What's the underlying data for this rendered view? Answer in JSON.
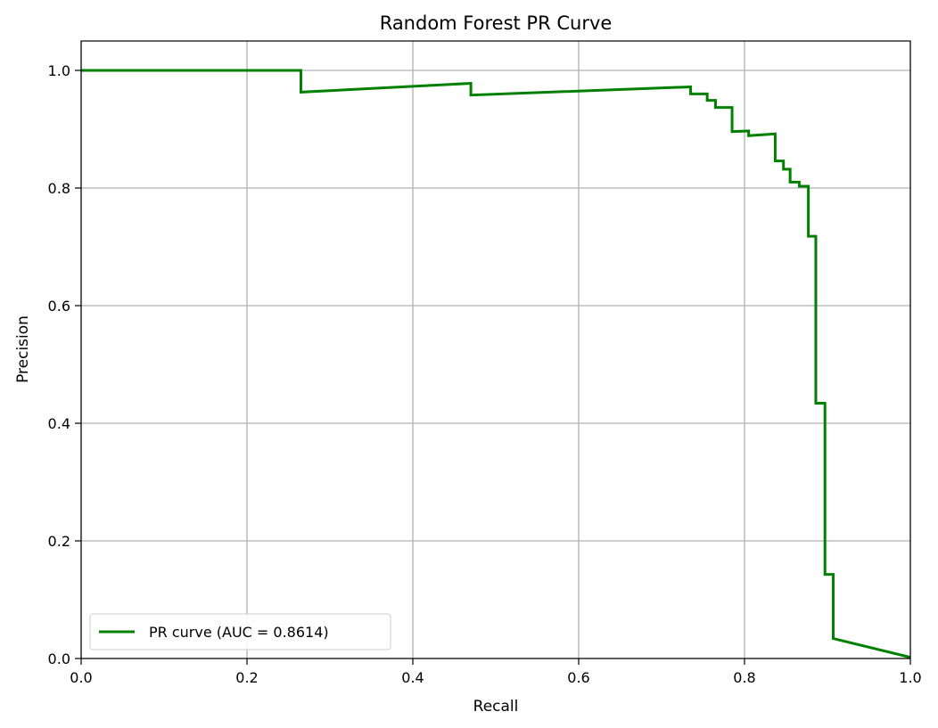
{
  "chart_data": {
    "type": "line",
    "title": "Random Forest PR Curve",
    "xlabel": "Recall",
    "ylabel": "Precision",
    "xlim": [
      0.0,
      1.0
    ],
    "ylim": [
      0.0,
      1.05
    ],
    "xticks": [
      0.0,
      0.2,
      0.4,
      0.6,
      0.8,
      1.0
    ],
    "yticks": [
      0.0,
      0.2,
      0.4,
      0.6,
      0.8,
      1.0
    ],
    "xtick_labels": [
      "0.0",
      "0.2",
      "0.4",
      "0.6",
      "0.8",
      "1.0"
    ],
    "ytick_labels": [
      "0.0",
      "0.2",
      "0.4",
      "0.6",
      "0.8",
      "1.0"
    ],
    "grid": true,
    "legend": {
      "position": "lower-left",
      "entries": [
        "PR curve (AUC = 0.8614)"
      ]
    },
    "series": [
      {
        "name": "PR curve (AUC = 0.8614)",
        "color": "#008000",
        "x": [
          0.0,
          0.265,
          0.265,
          0.47,
          0.47,
          0.735,
          0.735,
          0.755,
          0.755,
          0.765,
          0.765,
          0.785,
          0.785,
          0.805,
          0.805,
          0.837,
          0.837,
          0.847,
          0.847,
          0.855,
          0.855,
          0.866,
          0.866,
          0.877,
          0.877,
          0.886,
          0.886,
          0.897,
          0.897,
          0.907,
          0.907,
          1.0
        ],
        "y": [
          1.0,
          1.0,
          0.963,
          0.978,
          0.958,
          0.972,
          0.96,
          0.96,
          0.949,
          0.949,
          0.937,
          0.937,
          0.896,
          0.897,
          0.889,
          0.892,
          0.846,
          0.846,
          0.832,
          0.832,
          0.81,
          0.81,
          0.803,
          0.803,
          0.718,
          0.718,
          0.434,
          0.434,
          0.143,
          0.143,
          0.034,
          0.002
        ]
      }
    ]
  }
}
